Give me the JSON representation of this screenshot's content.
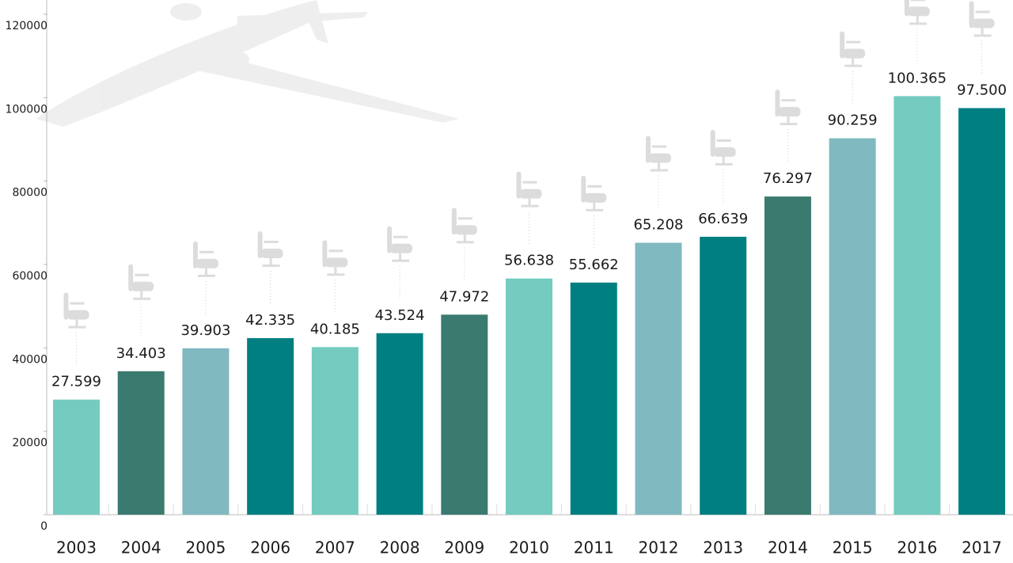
{
  "chart_data": {
    "type": "bar",
    "categories": [
      "2003",
      "2004",
      "2005",
      "2006",
      "2007",
      "2008",
      "2009",
      "2010",
      "2011",
      "2012",
      "2013",
      "2014",
      "2015",
      "2016",
      "2017"
    ],
    "values": [
      27599,
      34403,
      39903,
      42335,
      40185,
      43524,
      47972,
      56638,
      55662,
      65208,
      66639,
      76297,
      90259,
      100365,
      97500
    ],
    "value_labels": [
      "27.599",
      "34.403",
      "39.903",
      "42.335",
      "40.185",
      "43.524",
      "47.972",
      "56.638",
      "55.662",
      "65.208",
      "66.639",
      "76.297",
      "90.259",
      "100.365",
      "97.500"
    ],
    "colors": [
      "#74cbbf",
      "#3b7b6f",
      "#80b9c0",
      "#007f80",
      "#74cbbf",
      "#007f80",
      "#3b7b6f",
      "#74cbbf",
      "#007f80",
      "#80b9c0",
      "#007f80",
      "#3b7b6f",
      "#80b9c0",
      "#74cbbf",
      "#007f80"
    ],
    "ylim": [
      0,
      120000
    ],
    "yticks": [
      0,
      20000,
      40000,
      60000,
      80000,
      100000,
      120000
    ]
  }
}
